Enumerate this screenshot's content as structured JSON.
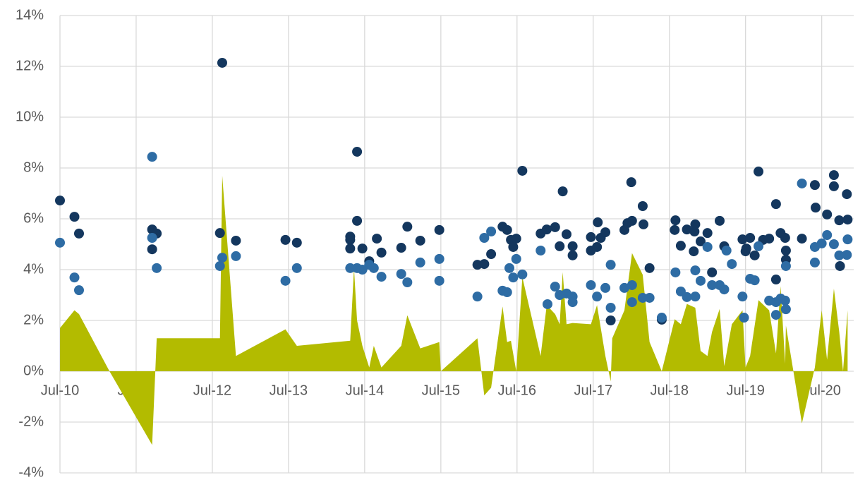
{
  "chart_data": {
    "type": "combo",
    "xlim": [
      2010.5,
      2020.92
    ],
    "ylim": [
      -4,
      14
    ],
    "grid": true,
    "xticks": [
      {
        "value": 2010.5,
        "label": "Jul-10"
      },
      {
        "value": 2011.5,
        "label": "Jul-11"
      },
      {
        "value": 2012.5,
        "label": "Jul-12"
      },
      {
        "value": 2013.5,
        "label": "Jul-13"
      },
      {
        "value": 2014.5,
        "label": "Jul-14"
      },
      {
        "value": 2015.5,
        "label": "Jul-15"
      },
      {
        "value": 2016.5,
        "label": "Jul-16"
      },
      {
        "value": 2017.5,
        "label": "Jul-17"
      },
      {
        "value": 2018.5,
        "label": "Jul-18"
      },
      {
        "value": 2019.5,
        "label": "Jul-19"
      },
      {
        "value": 2020.5,
        "label": "Jul-20"
      }
    ],
    "yticks": [
      {
        "value": -4,
        "label": "-4%"
      },
      {
        "value": -2,
        "label": "-2%"
      },
      {
        "value": 0,
        "label": "0%"
      },
      {
        "value": 2,
        "label": "2%"
      },
      {
        "value": 4,
        "label": "4%"
      },
      {
        "value": 6,
        "label": "6%"
      },
      {
        "value": 8,
        "label": "8%"
      },
      {
        "value": 10,
        "label": "10%"
      },
      {
        "value": 12,
        "label": "12%"
      },
      {
        "value": 14,
        "label": "14%"
      }
    ],
    "series": [
      {
        "type": "area",
        "color": "#b3bb00",
        "x": [
          2010.5,
          2010.69,
          2010.75,
          2011.15,
          2011.71,
          2011.77,
          2012.6,
          2012.63,
          2012.81,
          2013.46,
          2013.61,
          2014.31,
          2014.36,
          2014.4,
          2014.47,
          2014.56,
          2014.62,
          2014.72,
          2014.98,
          2015.06,
          2015.23,
          2015.48,
          2015.5,
          2015.98,
          2016.07,
          2016.16,
          2016.31,
          2016.37,
          2016.42,
          2016.49,
          2016.57,
          2016.81,
          2016.89,
          2017.0,
          2017.06,
          2017.1,
          2017.15,
          2017.23,
          2017.47,
          2017.55,
          2017.66,
          2017.73,
          2017.75,
          2017.91,
          2018.01,
          2018.15,
          2018.24,
          2018.4,
          2018.57,
          2018.65,
          2018.73,
          2018.84,
          2018.91,
          2019.0,
          2019.06,
          2019.16,
          2019.22,
          2019.32,
          2019.46,
          2019.5,
          2019.56,
          2019.67,
          2019.81,
          2019.9,
          2019.96,
          2020.02,
          2020.03,
          2020.24,
          2020.41,
          2020.5,
          2020.57,
          2020.66,
          2020.73,
          2020.78,
          2020.84
        ],
        "values": [
          1.7,
          2.4,
          2.25,
          0,
          -2.9,
          1.3,
          1.3,
          7.7,
          0.6,
          1.65,
          1.0,
          1.2,
          4.05,
          2.0,
          1.0,
          0.15,
          1.0,
          0.15,
          1.0,
          2.2,
          0.9,
          1.15,
          0,
          1.3,
          -0.95,
          -0.65,
          2.55,
          1.15,
          1.2,
          0,
          3.7,
          0.6,
          2.6,
          2.25,
          1.85,
          3.9,
          1.85,
          1.9,
          1.85,
          2.6,
          0.6,
          -0.4,
          1.3,
          2.4,
          4.65,
          3.8,
          1.15,
          0,
          2.05,
          1.85,
          2.65,
          2.5,
          0.8,
          0.6,
          1.55,
          2.45,
          0.2,
          1.85,
          2.4,
          0.15,
          0.6,
          2.8,
          2.4,
          0.7,
          3.35,
          0.3,
          1.8,
          -2.05,
          0.15,
          2.4,
          0.45,
          3.25,
          1.55,
          0,
          2.4
        ]
      },
      {
        "type": "scatter",
        "color": "#14375e",
        "x": [
          2010.5,
          2010.69,
          2010.75,
          2011.71,
          2011.77,
          2011.71,
          2012.63,
          2012.6,
          2012.81,
          2013.46,
          2013.61,
          2014.31,
          2014.31,
          2014.31,
          2014.4,
          2014.4,
          2014.47,
          2014.56,
          2014.66,
          2014.72,
          2014.98,
          2015.06,
          2015.23,
          2015.48,
          2015.98,
          2016.07,
          2016.16,
          2016.31,
          2016.37,
          2016.42,
          2016.45,
          2016.49,
          2016.57,
          2016.81,
          2016.89,
          2017.0,
          2017.06,
          2017.1,
          2017.15,
          2017.23,
          2017.23,
          2017.47,
          2017.47,
          2017.56,
          2017.55,
          2017.6,
          2017.66,
          2017.73,
          2017.91,
          2017.95,
          2018.0,
          2018.01,
          2018.15,
          2018.16,
          2018.24,
          2018.4,
          2018.58,
          2018.57,
          2018.65,
          2018.73,
          2018.84,
          2018.83,
          2018.82,
          2018.91,
          2019.0,
          2019.06,
          2019.16,
          2019.22,
          2019.46,
          2019.51,
          2019.56,
          2019.5,
          2019.62,
          2019.67,
          2019.73,
          2019.81,
          2019.9,
          2019.9,
          2019.96,
          2020.02,
          2020.03,
          2020.03,
          2020.24,
          2020.41,
          2020.42,
          2020.57,
          2020.66,
          2020.66,
          2020.73,
          2020.84,
          2020.83,
          2020.74
        ],
        "values": [
          6.72,
          6.08,
          5.42,
          5.58,
          5.42,
          4.8,
          12.14,
          5.44,
          5.14,
          5.17,
          5.06,
          5.3,
          5.17,
          4.83,
          8.64,
          5.92,
          4.83,
          4.33,
          5.22,
          4.67,
          4.86,
          5.69,
          5.14,
          5.56,
          4.19,
          4.22,
          4.61,
          5.69,
          5.56,
          5.17,
          4.89,
          5.22,
          7.89,
          5.42,
          5.58,
          5.67,
          4.92,
          7.08,
          5.39,
          4.92,
          4.56,
          5.28,
          4.75,
          5.86,
          4.89,
          5.25,
          5.47,
          2.0,
          5.56,
          5.83,
          7.44,
          5.92,
          6.5,
          5.78,
          4.06,
          2.03,
          5.94,
          5.56,
          4.94,
          5.58,
          5.78,
          5.5,
          4.72,
          5.11,
          5.44,
          3.89,
          5.92,
          4.92,
          5.19,
          4.83,
          5.25,
          4.72,
          4.56,
          7.86,
          5.17,
          5.22,
          6.58,
          3.61,
          5.44,
          5.25,
          4.75,
          4.39,
          5.22,
          7.33,
          6.44,
          6.17,
          7.72,
          7.28,
          5.94,
          5.97,
          6.97,
          4.14
        ]
      },
      {
        "type": "scatter",
        "color": "#2e6ca4",
        "x": [
          2010.5,
          2010.69,
          2010.75,
          2011.71,
          2011.71,
          2011.77,
          2012.6,
          2012.63,
          2012.81,
          2013.46,
          2013.61,
          2014.31,
          2014.4,
          2014.47,
          2014.56,
          2014.62,
          2014.72,
          2014.98,
          2015.06,
          2015.23,
          2015.48,
          2015.48,
          2015.98,
          2016.07,
          2016.16,
          2016.31,
          2016.37,
          2016.4,
          2016.45,
          2016.49,
          2016.57,
          2016.81,
          2016.9,
          2017.0,
          2017.06,
          2017.15,
          2017.23,
          2017.23,
          2017.47,
          2017.55,
          2017.66,
          2017.73,
          2017.73,
          2017.91,
          2018.01,
          2018.01,
          2018.15,
          2018.24,
          2018.4,
          2018.58,
          2018.65,
          2018.73,
          2018.84,
          2018.84,
          2018.91,
          2019.0,
          2019.06,
          2019.16,
          2019.22,
          2019.32,
          2019.25,
          2019.46,
          2019.48,
          2019.56,
          2019.62,
          2019.67,
          2019.81,
          2019.9,
          2019.9,
          2019.96,
          2020.02,
          2020.03,
          2020.03,
          2020.24,
          2020.41,
          2020.41,
          2020.5,
          2020.57,
          2020.66,
          2020.73,
          2020.83,
          2020.84
        ],
        "values": [
          5.06,
          3.69,
          3.19,
          8.44,
          5.25,
          4.06,
          4.14,
          4.47,
          4.53,
          3.56,
          4.06,
          4.06,
          4.06,
          4.0,
          4.19,
          4.06,
          3.72,
          3.83,
          3.5,
          4.28,
          4.42,
          3.56,
          2.94,
          5.25,
          5.5,
          3.17,
          3.11,
          4.06,
          3.69,
          4.42,
          3.81,
          4.75,
          2.64,
          3.33,
          3.0,
          3.06,
          2.72,
          2.94,
          3.39,
          2.94,
          3.28,
          4.19,
          2.5,
          3.28,
          3.39,
          2.72,
          2.89,
          2.89,
          2.11,
          3.89,
          3.14,
          2.92,
          3.97,
          2.94,
          3.56,
          4.89,
          3.39,
          3.39,
          3.22,
          4.22,
          4.75,
          2.94,
          2.11,
          3.64,
          3.58,
          4.92,
          2.78,
          2.72,
          2.22,
          2.86,
          2.78,
          2.44,
          4.14,
          7.39,
          4.28,
          4.89,
          5.03,
          5.36,
          5.0,
          4.56,
          4.58,
          5.19
        ]
      }
    ]
  }
}
